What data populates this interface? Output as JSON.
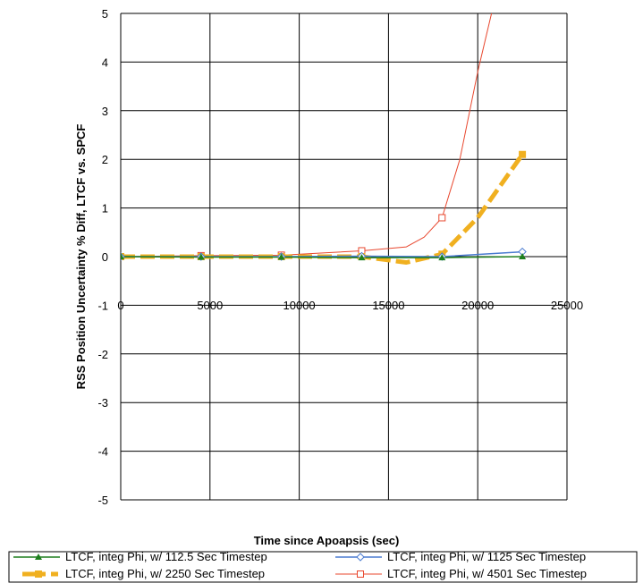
{
  "chart_data": {
    "type": "line",
    "title": "",
    "xlabel": "Time since Apoapsis (sec)",
    "ylabel": "RSS Position Uncertainty % Diff, LTCF vs. SPCF",
    "xlim": [
      0,
      25000
    ],
    "ylim": [
      -5,
      5
    ],
    "xticks": [
      0,
      5000,
      10000,
      15000,
      20000,
      25000
    ],
    "yticks": [
      -5,
      -4,
      -3,
      -2,
      -1,
      0,
      1,
      2,
      3,
      4,
      5
    ],
    "grid": true,
    "legend_position": "bottom",
    "series": [
      {
        "name": "LTCF, integ Phi, w/ 112.5 Sec Timestep",
        "color": "#1e7f1e",
        "marker": "filled-triangle",
        "line": "solid",
        "x": [
          0,
          4500,
          9000,
          13500,
          18000,
          22500
        ],
        "y": [
          0.0,
          -0.01,
          -0.01,
          -0.02,
          -0.02,
          0.0
        ]
      },
      {
        "name": "LTCF, integ Phi, w/ 1125 Sec Timestep",
        "color": "#4a7bd0",
        "marker": "open-diamond",
        "line": "solid",
        "x": [
          0,
          4500,
          9000,
          13500,
          18000,
          22500
        ],
        "y": [
          0.0,
          0.0,
          0.0,
          0.01,
          0.0,
          0.1
        ]
      },
      {
        "name": "LTCF, integ Phi, w/ 2250 Sec Timestep",
        "color": "#f0b020",
        "marker": "filled-square",
        "line": "dashed-thick",
        "x": [
          0,
          4500,
          9000,
          13500,
          16000,
          18000,
          20000,
          22500
        ],
        "y": [
          0.0,
          0.0,
          0.0,
          0.0,
          -0.12,
          0.05,
          0.8,
          2.1
        ]
      },
      {
        "name": "LTCF, integ Phi, w/ 4501 Sec Timestep",
        "color": "#e8472e",
        "marker": "open-square",
        "line": "solid-thin",
        "x": [
          0,
          4500,
          9000,
          13500,
          16000,
          17000,
          18000,
          19000,
          20000,
          20900
        ],
        "y": [
          0.0,
          0.02,
          0.03,
          0.12,
          0.2,
          0.4,
          0.8,
          2.0,
          3.8,
          5.2
        ]
      }
    ]
  }
}
